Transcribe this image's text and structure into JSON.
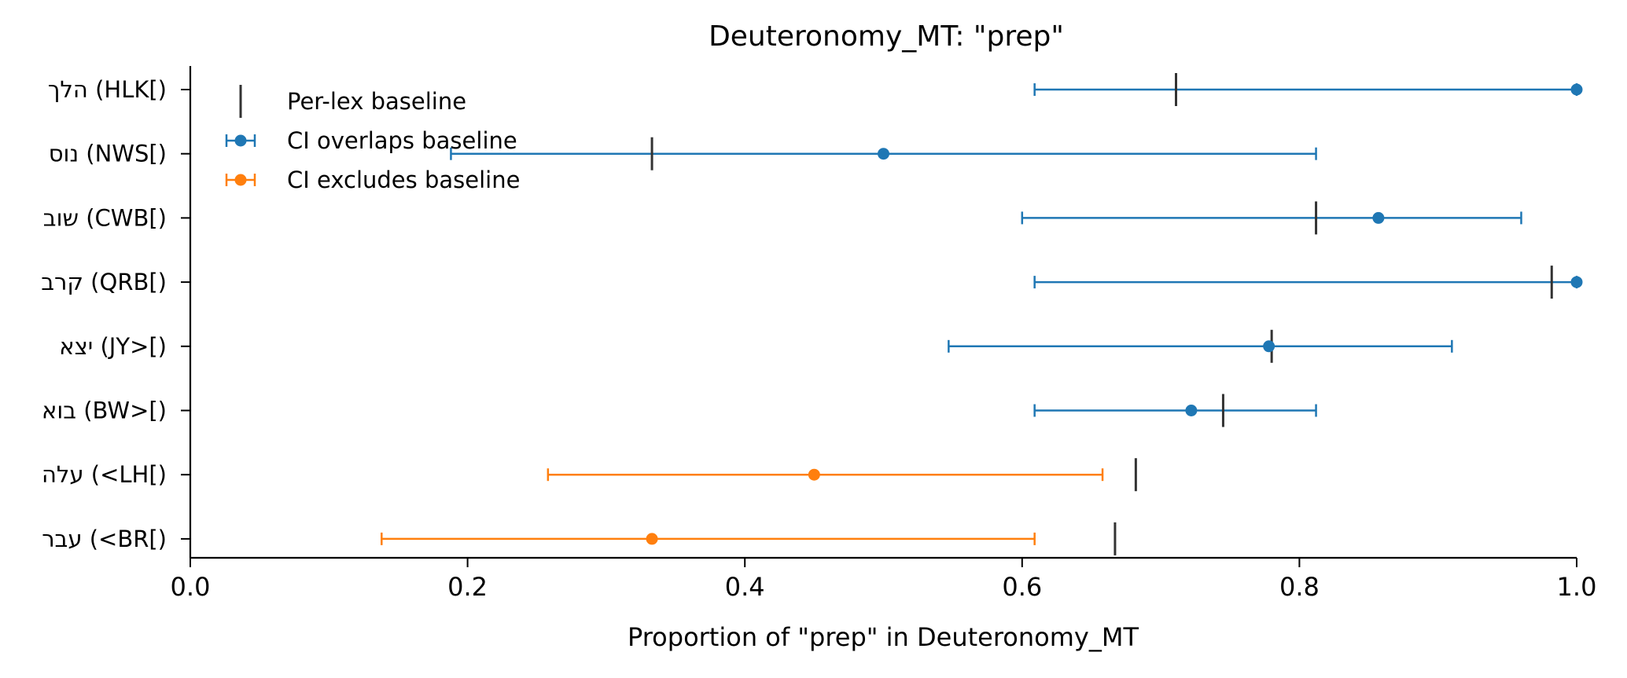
{
  "chart_data": {
    "type": "errorbar",
    "title": "Deuteronomy_MT: \"prep\"",
    "xlabel": "Proportion of \"prep\" in Deuteronomy_MT",
    "ylabel": "",
    "xlim": [
      0.0,
      1.0
    ],
    "xticks": [
      "0.0",
      "0.2",
      "0.4",
      "0.6",
      "0.8",
      "1.0"
    ],
    "grid": false,
    "legend_position": "upper left",
    "legend": [
      {
        "key": "baseline",
        "label": "Per-lex baseline",
        "color": "#333333"
      },
      {
        "key": "overlap",
        "label": "CI overlaps baseline",
        "color": "#1f77b4"
      },
      {
        "key": "excludes",
        "label": "CI excludes baseline",
        "color": "#ff7f0e"
      }
    ],
    "categories": [
      {
        "label": "הלך (HLK[)",
        "estimate": 1.0,
        "ci_low": 0.609,
        "ci_high": 1.0,
        "baseline": 0.711,
        "status": "overlap"
      },
      {
        "label": "נוס (NWS[)",
        "estimate": 0.5,
        "ci_low": 0.188,
        "ci_high": 0.812,
        "baseline": 0.333,
        "status": "overlap"
      },
      {
        "label": "שוב (CWB[)",
        "estimate": 0.857,
        "ci_low": 0.6,
        "ci_high": 0.96,
        "baseline": 0.812,
        "status": "overlap"
      },
      {
        "label": "קרב (QRB[)",
        "estimate": 1.0,
        "ci_low": 0.609,
        "ci_high": 1.0,
        "baseline": 0.982,
        "status": "overlap"
      },
      {
        "label": "יצא (JY>[)",
        "estimate": 0.778,
        "ci_low": 0.547,
        "ci_high": 0.91,
        "baseline": 0.78,
        "status": "overlap"
      },
      {
        "label": "בוא (BW>[)",
        "estimate": 0.722,
        "ci_low": 0.609,
        "ci_high": 0.812,
        "baseline": 0.745,
        "status": "overlap"
      },
      {
        "label": "עלה (<LH[)",
        "estimate": 0.45,
        "ci_low": 0.258,
        "ci_high": 0.658,
        "baseline": 0.682,
        "status": "excludes"
      },
      {
        "label": "עבר (<BR[)",
        "estimate": 0.333,
        "ci_low": 0.138,
        "ci_high": 0.609,
        "baseline": 0.667,
        "status": "excludes"
      }
    ]
  }
}
